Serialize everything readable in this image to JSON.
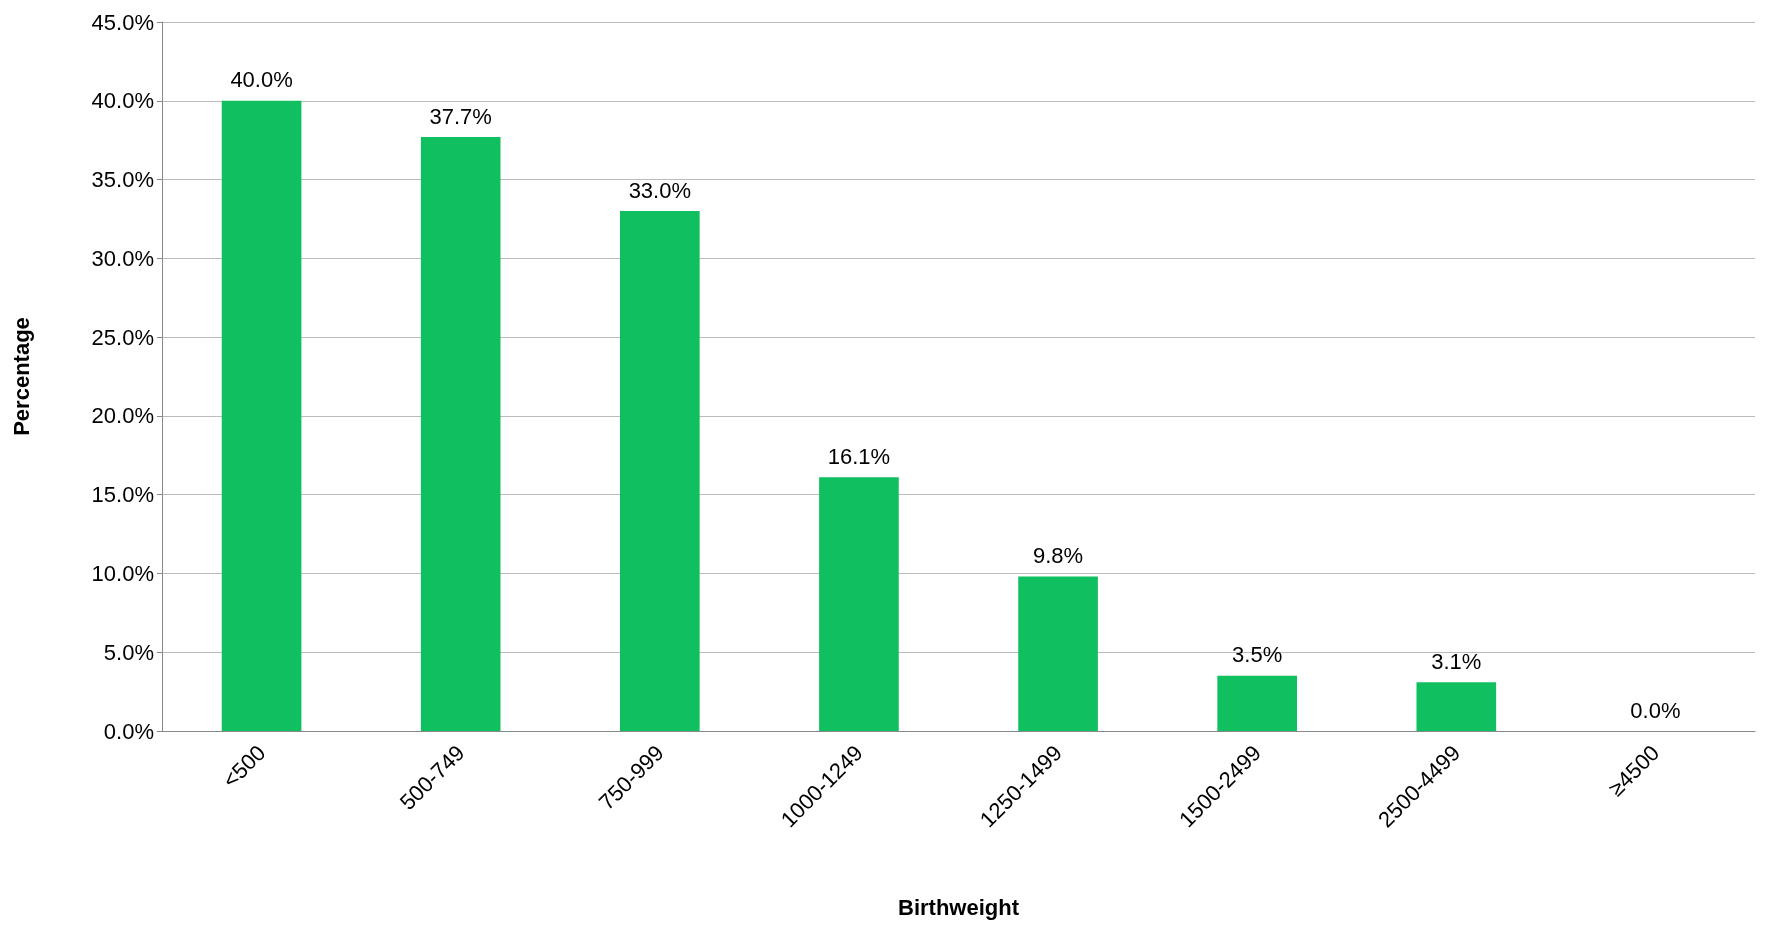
{
  "chart_data": {
    "type": "bar",
    "xlabel": "Birthweight",
    "ylabel": "Percentage",
    "categories": [
      "<500",
      "500-749",
      "750-999",
      "1000-1249",
      "1250-1499",
      "1500-2499",
      "2500-4499",
      "≥4500"
    ],
    "values": [
      40.0,
      37.7,
      33.0,
      16.1,
      9.8,
      3.5,
      3.1,
      0.0
    ],
    "value_labels": [
      "40.0%",
      "37.7%",
      "33.0%",
      "16.1%",
      "9.8%",
      "3.5%",
      "3.1%",
      "0.0%"
    ],
    "color": "#10c060",
    "ylim": [
      0,
      45
    ],
    "yticks": [
      {
        "value": 0,
        "label": "0.0%"
      },
      {
        "value": 5,
        "label": "5.0%"
      },
      {
        "value": 10,
        "label": "10.0%"
      },
      {
        "value": 15,
        "label": "15.0%"
      },
      {
        "value": 20,
        "label": "20.0%"
      },
      {
        "value": 25,
        "label": "25.0%"
      },
      {
        "value": 30,
        "label": "30.0%"
      },
      {
        "value": 35,
        "label": "35.0%"
      },
      {
        "value": 40,
        "label": "40.0%"
      },
      {
        "value": 45,
        "label": "45.0%"
      }
    ],
    "grid": "y"
  }
}
